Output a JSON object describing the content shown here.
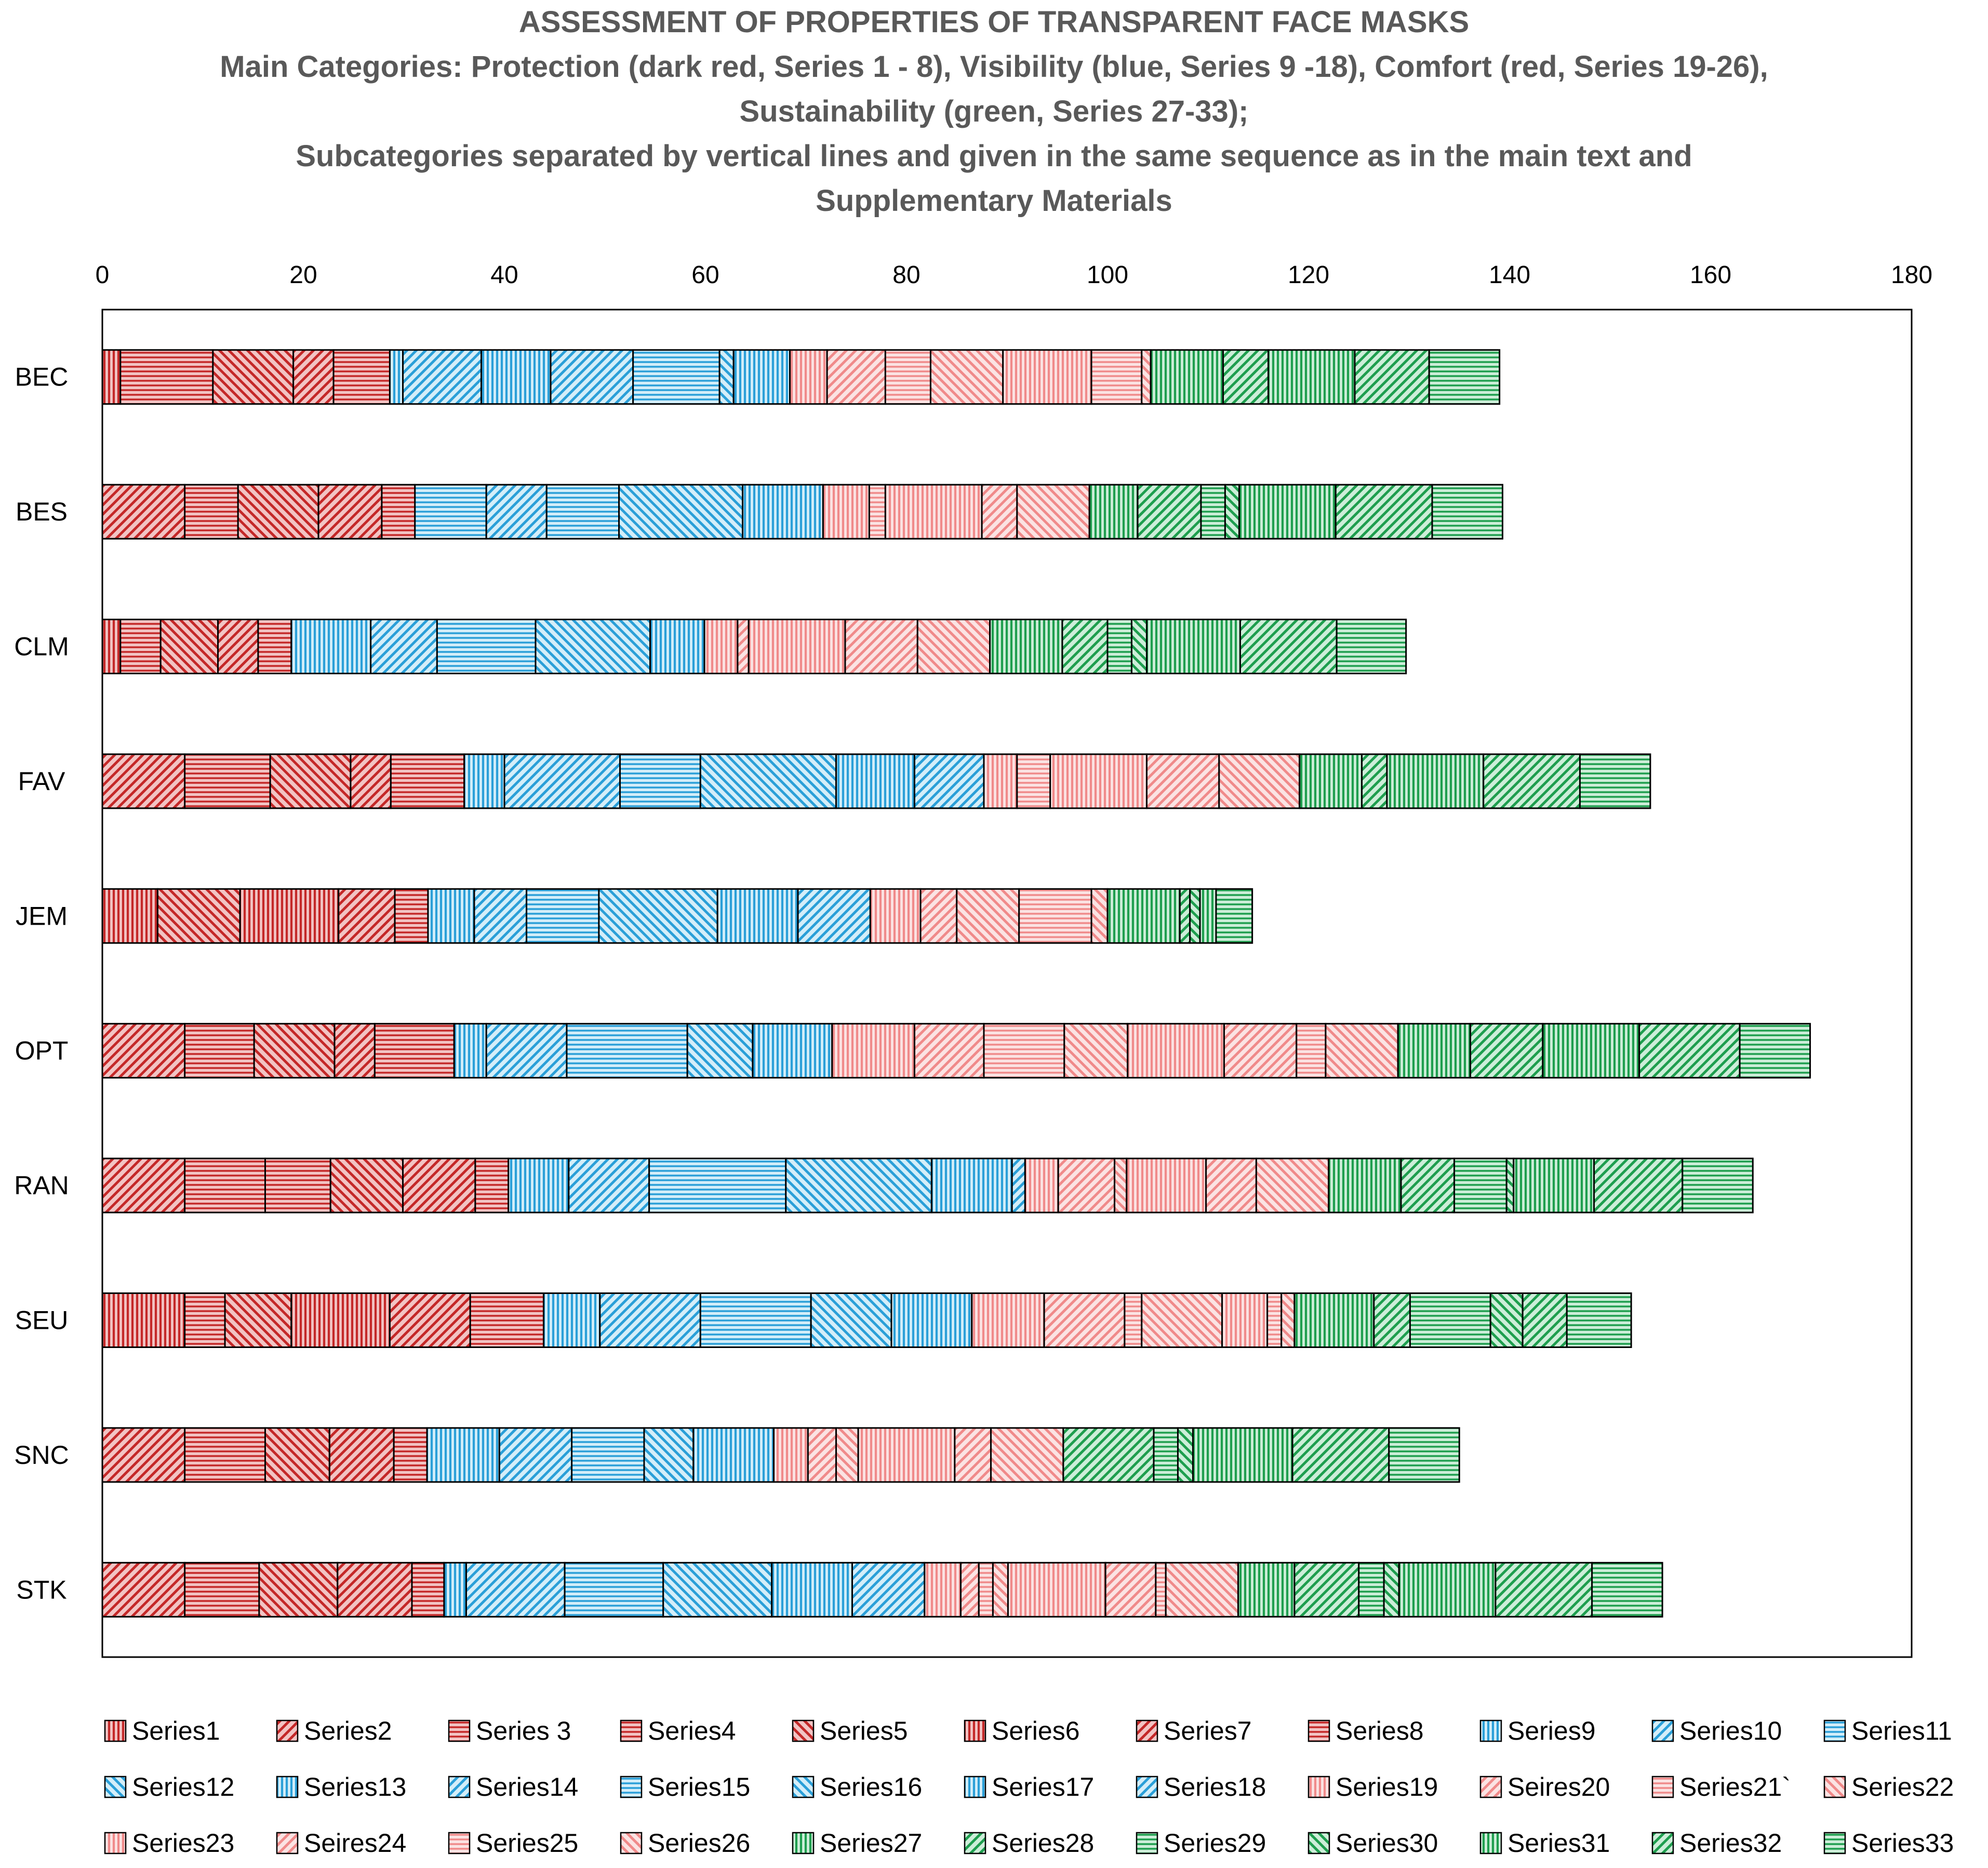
{
  "chart_data": {
    "type": "bar",
    "orientation": "horizontal",
    "stacked": true,
    "title": [
      "ASSESSMENT OF PROPERTIES OF TRANSPARENT FACE MASKS",
      "Main Categories: Protection (dark red, Series 1 - 8), Visibility (blue, Series 9 -18), Comfort (red, Series 19-26),",
      "Sustainability (green, Series 27-33);",
      "Subcategories separated by vertical lines and given in the same sequence as in the main text and",
      "Supplementary Materials"
    ],
    "xlim": [
      0,
      180
    ],
    "xticks": [
      "0",
      "20",
      "40",
      "60",
      "80",
      "100",
      "120",
      "140",
      "160",
      "180"
    ],
    "grid": false,
    "legend_position": "bottom",
    "categories": [
      "BEC",
      "BES",
      "CLM",
      "FAV",
      "JEM",
      "OPT",
      "RAN",
      "SEU",
      "SNC",
      "STK"
    ],
    "series": [
      {
        "name": "Series1",
        "group": "protection",
        "pattern": "vertical",
        "values": [
          1.8,
          0,
          1.8,
          0,
          5.5,
          0,
          0,
          8.2,
          0,
          0
        ]
      },
      {
        "name": "Series2",
        "group": "protection",
        "pattern": "diag-up",
        "values": [
          0,
          8.2,
          0,
          8.2,
          0,
          8.2,
          8.2,
          0,
          8.2,
          8.2
        ]
      },
      {
        "name": "Series 3",
        "group": "protection",
        "pattern": "horizontal",
        "values": [
          9.2,
          5.3,
          4.0,
          8.5,
          0,
          6.9,
          8.0,
          0,
          8.0,
          7.4
        ]
      },
      {
        "name": "Series4",
        "group": "protection",
        "pattern": "horizontal",
        "values": [
          0,
          0,
          0,
          0,
          0,
          0,
          6.5,
          4.0,
          0,
          0
        ]
      },
      {
        "name": "Series5",
        "group": "protection",
        "pattern": "diag-down",
        "values": [
          8.0,
          8.0,
          5.7,
          8.0,
          8.2,
          8.0,
          7.2,
          6.6,
          6.4,
          7.8
        ]
      },
      {
        "name": "Series6",
        "group": "protection",
        "pattern": "vertical",
        "values": [
          0,
          0,
          0,
          0,
          9.8,
          0,
          0,
          9.8,
          0,
          0
        ]
      },
      {
        "name": "Series7",
        "group": "protection",
        "pattern": "diag-up",
        "values": [
          4.0,
          6.3,
          4.0,
          4.0,
          5.6,
          4.0,
          7.2,
          8.0,
          6.4,
          7.4
        ]
      },
      {
        "name": "Series8",
        "group": "protection",
        "pattern": "horizontal",
        "values": [
          5.6,
          3.3,
          3.3,
          7.3,
          3.3,
          7.9,
          3.3,
          7.3,
          3.3,
          3.2
        ]
      },
      {
        "name": "Series9",
        "group": "visibility",
        "pattern": "vertical",
        "values": [
          1.3,
          0,
          0,
          0,
          0,
          0,
          0,
          0,
          0,
          0
        ]
      },
      {
        "name": "Series10",
        "group": "visibility",
        "pattern": "diag-up",
        "values": [
          7.8,
          0,
          0,
          0,
          0,
          0,
          0,
          0,
          0,
          0
        ]
      },
      {
        "name": "Series11",
        "group": "visibility",
        "pattern": "horizontal",
        "values": [
          0,
          7.1,
          0,
          0,
          0,
          0,
          0,
          0,
          0,
          0
        ]
      },
      {
        "name": "Series12",
        "group": "visibility",
        "pattern": "diag-down",
        "values": [
          0,
          0,
          0,
          0,
          0,
          0,
          0,
          0,
          0,
          0
        ]
      },
      {
        "name": "Series13",
        "group": "visibility",
        "pattern": "vertical",
        "values": [
          6.9,
          0,
          7.9,
          4.0,
          4.6,
          3.2,
          6.0,
          5.6,
          7.2,
          2.2
        ]
      },
      {
        "name": "Series14",
        "group": "visibility",
        "pattern": "diag-up",
        "values": [
          8.2,
          6.0,
          6.6,
          11.5,
          5.2,
          8.0,
          8.0,
          10.0,
          7.2,
          9.8
        ]
      },
      {
        "name": "Series15",
        "group": "visibility",
        "pattern": "horizontal",
        "values": [
          8.6,
          7.2,
          9.8,
          8.0,
          7.2,
          12.0,
          13.6,
          11.0,
          7.2,
          9.8
        ]
      },
      {
        "name": "Series16",
        "group": "visibility",
        "pattern": "diag-down",
        "values": [
          1.4,
          12.3,
          11.4,
          13.5,
          11.8,
          6.5,
          14.5,
          8.0,
          4.9,
          10.8
        ]
      },
      {
        "name": "Series17",
        "group": "visibility",
        "pattern": "vertical",
        "values": [
          5.6,
          8.0,
          5.4,
          7.8,
          8.0,
          7.9,
          8.0,
          8.0,
          8.0,
          8.0
        ]
      },
      {
        "name": "Series18",
        "group": "visibility",
        "pattern": "diag-up",
        "values": [
          0,
          0,
          0,
          6.9,
          7.2,
          0,
          1.3,
          0,
          0,
          7.2
        ]
      },
      {
        "name": "Series19",
        "group": "comfort",
        "pattern": "vertical",
        "values": [
          3.7,
          4.6,
          3.3,
          3.3,
          5.0,
          8.2,
          3.3,
          7.2,
          3.4,
          3.6
        ]
      },
      {
        "name": "Seires20",
        "group": "comfort",
        "pattern": "diag-up",
        "values": [
          5.8,
          0,
          1.1,
          0,
          3.6,
          6.9,
          5.6,
          8.0,
          2.8,
          1.8
        ]
      },
      {
        "name": "Series21`",
        "group": "comfort",
        "pattern": "horizontal",
        "values": [
          4.5,
          1.6,
          0,
          3.3,
          0,
          8.0,
          0,
          1.7,
          0,
          1.4
        ]
      },
      {
        "name": "Series22",
        "group": "comfort",
        "pattern": "diag-down",
        "values": [
          7.2,
          0,
          0,
          0,
          6.2,
          6.3,
          1.2,
          8.0,
          2.2,
          1.5
        ]
      },
      {
        "name": "Series23",
        "group": "comfort",
        "pattern": "vertical",
        "values": [
          8.8,
          9.6,
          9.6,
          9.6,
          0,
          9.6,
          7.9,
          4.5,
          9.6,
          9.7
        ]
      },
      {
        "name": "Seires24",
        "group": "comfort",
        "pattern": "diag-up",
        "values": [
          0,
          3.5,
          7.2,
          7.2,
          0,
          7.2,
          5.0,
          0,
          3.6,
          5.0
        ]
      },
      {
        "name": "Series25",
        "group": "comfort",
        "pattern": "horizontal",
        "values": [
          5.0,
          0,
          0,
          0,
          7.2,
          2.9,
          0,
          1.4,
          0,
          1.0
        ]
      },
      {
        "name": "Series26",
        "group": "comfort",
        "pattern": "diag-down",
        "values": [
          0.9,
          7.2,
          7.2,
          8.0,
          1.6,
          7.2,
          7.2,
          1.3,
          7.2,
          7.2
        ]
      },
      {
        "name": "Series27",
        "group": "sustainability",
        "pattern": "vertical",
        "values": [
          7.2,
          4.8,
          7.2,
          6.2,
          7.2,
          7.2,
          7.2,
          7.9,
          0,
          5.6
        ]
      },
      {
        "name": "Series28",
        "group": "sustainability",
        "pattern": "diag-up",
        "values": [
          4.5,
          6.3,
          4.5,
          2.5,
          1.0,
          7.2,
          5.3,
          3.6,
          9.0,
          6.4
        ]
      },
      {
        "name": "Series29",
        "group": "sustainability",
        "pattern": "horizontal",
        "values": [
          0,
          2.4,
          2.4,
          0,
          0,
          0,
          5.2,
          8.0,
          2.4,
          2.5
        ]
      },
      {
        "name": "Series30",
        "group": "sustainability",
        "pattern": "diag-down",
        "values": [
          0,
          1.4,
          1.5,
          0,
          1.0,
          0,
          0.7,
          3.2,
          1.5,
          1.5
        ]
      },
      {
        "name": "Series31",
        "group": "sustainability",
        "pattern": "vertical",
        "values": [
          8.6,
          9.6,
          9.3,
          9.6,
          1.6,
          9.6,
          8.0,
          0,
          9.9,
          9.6
        ]
      },
      {
        "name": "Series32",
        "group": "sustainability",
        "pattern": "diag-up",
        "values": [
          7.4,
          9.6,
          9.6,
          9.6,
          0,
          10.0,
          8.8,
          4.4,
          9.6,
          9.6
        ]
      },
      {
        "name": "Series33",
        "group": "sustainability",
        "pattern": "horizontal",
        "values": [
          7.0,
          7.0,
          6.9,
          7.0,
          3.6,
          7.0,
          7.0,
          6.4,
          7.0,
          7.0
        ]
      }
    ],
    "group_colors": {
      "protection": {
        "fill": "#f2c4c4",
        "stroke": "#c42828"
      },
      "visibility": {
        "fill": "#d4eef9",
        "stroke": "#2a9fd8"
      },
      "comfort": {
        "fill": "#fbe3e3",
        "stroke": "#f08a8a"
      },
      "sustainability": {
        "fill": "#cdeed9",
        "stroke": "#1e9e4e"
      }
    },
    "colors": {
      "text": "#595959",
      "axis": "#000000",
      "category_text": "#000000",
      "bar_outline": "#000000"
    }
  }
}
